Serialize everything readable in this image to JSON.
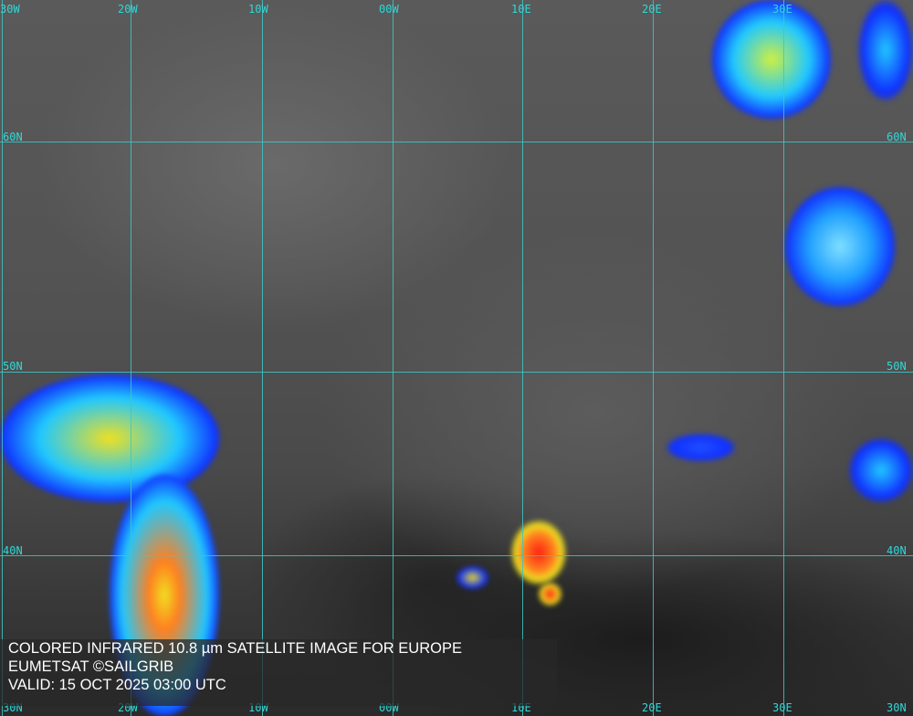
{
  "caption": {
    "line1": "COLORED INFRARED 10.8 µm SATELLITE IMAGE FOR EUROPE",
    "line2": "EUMETSAT ©SAILGRIB",
    "line3": "VALID:  15 OCT 2025 03:00 UTC"
  },
  "grid": {
    "top_labels": [
      "30W",
      "20W",
      "10W",
      "00W",
      "10E",
      "20E",
      "30E"
    ],
    "bottom_labels": [
      "30N",
      "20W",
      "10W",
      "00W",
      "10E",
      "20E",
      "30E",
      "30N"
    ],
    "left_labels": [
      "60N",
      "50N",
      "40N"
    ],
    "right_labels": [
      "60N",
      "50N",
      "40N"
    ],
    "line_color": "#3fc6c6"
  },
  "colors": {
    "cold_cloud_blue": "#1030ff",
    "cyan": "#10d0ff",
    "yellow": "#f0f020",
    "red": "#ff2010"
  }
}
